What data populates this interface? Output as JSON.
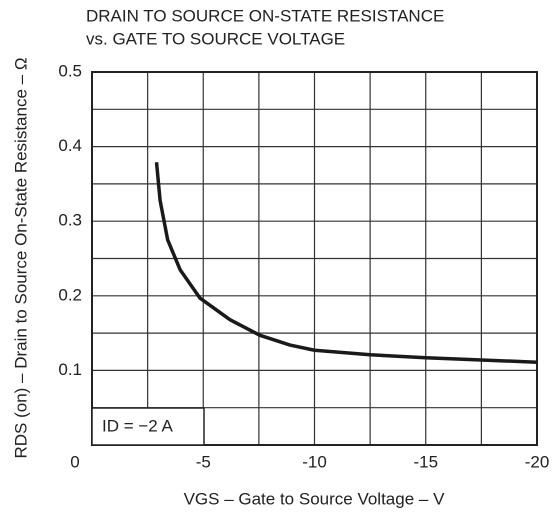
{
  "chart_data": {
    "type": "line",
    "title": "DRAIN TO SOURCE ON-STATE RESISTANCE",
    "subtitle": "vs. GATE TO SOURCE VOLTAGE",
    "x_label": "VGS – Gate to Source Voltage – V",
    "y_label": "RDS (on) – Drain to Source On-State Resistance – Ω",
    "annotation": "ID = −2 A",
    "xlim": [
      0,
      -20
    ],
    "xticks": [
      0,
      -5,
      -10,
      -15,
      -20
    ],
    "xminor": [
      -2.5,
      -7.5,
      -12.5,
      -17.5
    ],
    "ylim": [
      0,
      0.5
    ],
    "yticks": [
      0.1,
      0.2,
      0.3,
      0.4,
      0.5
    ],
    "yminor": [
      0.05,
      0.15,
      0.25,
      0.35,
      0.45
    ],
    "grid": true,
    "series": [
      {
        "color": "#1a1a1a",
        "x": [
          -2.9,
          -3.06,
          -3.4,
          -3.96,
          -4.85,
          -6.2,
          -7.55,
          -8.9,
          -10,
          -12.5,
          -15,
          -17.5,
          -20
        ],
        "values": [
          0.379,
          0.328,
          0.275,
          0.235,
          0.197,
          0.168,
          0.147,
          0.134,
          0.127,
          0.121,
          0.117,
          0.114,
          0.111
        ]
      }
    ]
  }
}
